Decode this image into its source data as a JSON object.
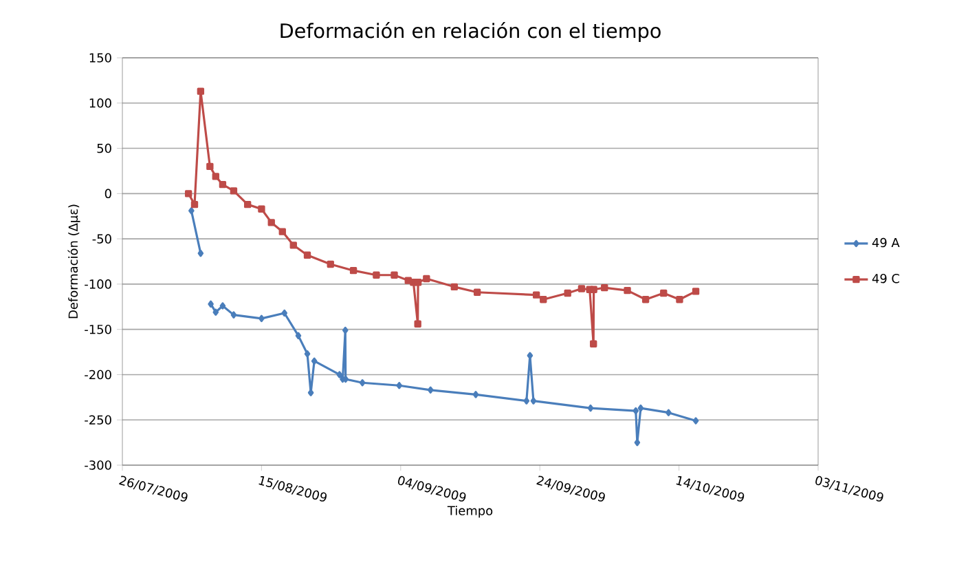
{
  "chart_data": {
    "type": "line",
    "title": "Deformación en relación con el tiempo",
    "xlabel": "Tiempo",
    "ylabel": "Deformación (Δμε)",
    "xlim": [
      "2009-07-26",
      "2009-11-03"
    ],
    "xticks": [
      {
        "value": "2009-07-26",
        "label": "26/07/2009"
      },
      {
        "value": "2009-08-15",
        "label": "15/08/2009"
      },
      {
        "value": "2009-09-04",
        "label": "04/09/2009"
      },
      {
        "value": "2009-09-24",
        "label": "24/09/2009"
      },
      {
        "value": "2009-10-14",
        "label": "14/10/2009"
      },
      {
        "value": "2009-11-03",
        "label": "03/11/2009"
      }
    ],
    "ylim": [
      -300,
      150
    ],
    "yticks": [
      -300,
      -250,
      -200,
      -150,
      -100,
      -50,
      0,
      50,
      100,
      150
    ],
    "grid": "y",
    "legend": "right",
    "line_style": "solid",
    "series": [
      {
        "name": "49 A",
        "color": "#4a7ebb",
        "marker": "diamond",
        "x": [
          "2009-08-04T22:00",
          "2009-08-06T06:00",
          "2009-08-07T00:00",
          "2009-08-07T17:00",
          "2009-08-08T10:00",
          "2009-08-09T10:00",
          "2009-08-11T00:00",
          "2009-08-15T00:00",
          "2009-08-18T07:00",
          "2009-08-20T07:00",
          "2009-08-21T14:00",
          "2009-08-22T02:00",
          "2009-08-22T14:00",
          "2009-08-26T05:00",
          "2009-08-26T16:00",
          "2009-08-27T01:00",
          "2009-08-27T02:00",
          "2009-08-29T12:00",
          "2009-09-03T19:00",
          "2009-09-08T07:00",
          "2009-09-14T19:00",
          "2009-09-22T02:00",
          "2009-09-22T14:00",
          "2009-09-23T02:00",
          "2009-10-01T07:00",
          "2009-10-07T19:00",
          "2009-10-08T00:00",
          "2009-10-08T12:00",
          "2009-10-12T12:00",
          "2009-10-16T10:00"
        ],
        "values": [
          -19,
          -66,
          null,
          -122,
          -131,
          -124,
          -134,
          -138,
          -132,
          -157,
          -177,
          -220,
          -185,
          -200,
          -205,
          -151,
          -205,
          -209,
          -212,
          -217,
          -222,
          -229,
          -179,
          -229,
          -237,
          -240,
          -275,
          -237,
          -242,
          -251
        ]
      },
      {
        "name": "49 C",
        "color": "#be4b48",
        "marker": "square",
        "x": [
          "2009-08-04T12:00",
          "2009-08-05T09:00",
          "2009-08-06T06:00",
          "2009-08-07T14:00",
          "2009-08-08T10:00",
          "2009-08-09T10:00",
          "2009-08-11T00:00",
          "2009-08-13T00:00",
          "2009-08-15T00:00",
          "2009-08-16T10:00",
          "2009-08-18T00:00",
          "2009-08-19T14:00",
          "2009-08-21T14:00",
          "2009-08-24T22:00",
          "2009-08-28T05:00",
          "2009-08-31T12:00",
          "2009-09-03T02:00",
          "2009-09-05T02:00",
          "2009-09-05T20:00",
          "2009-09-06T11:00",
          "2009-09-06T12:00",
          "2009-09-07T17:00",
          "2009-09-11T17:00",
          "2009-09-15T00:00",
          "2009-09-23T12:00",
          "2009-09-24T12:00",
          "2009-09-28T00:00",
          "2009-09-30T00:00",
          "2009-10-01T04:00",
          "2009-10-01T17:00",
          "2009-10-01T18:00",
          "2009-10-03T07:00",
          "2009-10-06T14:00",
          "2009-10-09T05:00",
          "2009-10-11T19:00",
          "2009-10-14T02:00",
          "2009-10-16T10:00"
        ],
        "values": [
          0,
          -12,
          113,
          30,
          19,
          10,
          3,
          -12,
          -17,
          -32,
          -42,
          -57,
          -68,
          -78,
          -85,
          -90,
          -90,
          -96,
          -98,
          -144,
          -98,
          -94,
          -103,
          -109,
          -112,
          -117,
          -110,
          -105,
          -106,
          -166,
          -106,
          -104,
          -107,
          -117,
          -110,
          -117,
          -108
        ]
      }
    ]
  }
}
